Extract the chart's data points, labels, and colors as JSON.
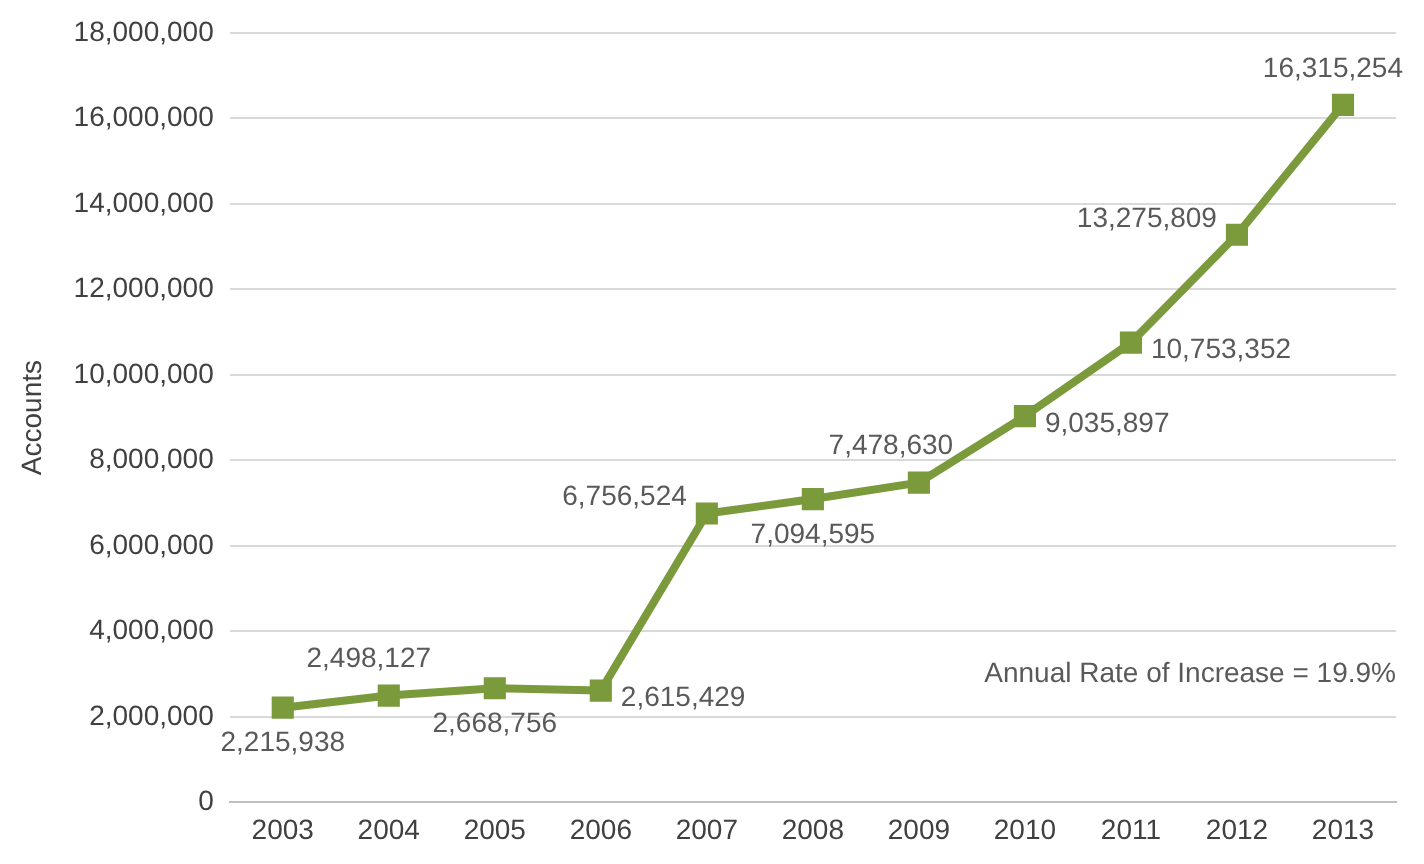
{
  "chart_data": {
    "type": "line",
    "ylabel": "Accounts",
    "categories": [
      "2003",
      "2004",
      "2005",
      "2006",
      "2007",
      "2008",
      "2009",
      "2010",
      "2011",
      "2012",
      "2013"
    ],
    "series": [
      {
        "color": "#7a9a3c",
        "values": [
          2215938,
          2498127,
          2668756,
          2615429,
          6756524,
          7094595,
          7478630,
          9035897,
          10753352,
          13275809,
          16315254
        ],
        "value_labels": [
          "2,215,938",
          "2,498,127",
          "2,668,756",
          "2,615,429",
          "6,756,524",
          "7,094,595",
          "7,478,630",
          "9,035,897",
          "10,753,352",
          "13,275,809",
          "16,315,254"
        ]
      }
    ],
    "ylim": [
      0,
      18000000
    ],
    "yticks": [
      {
        "value": 0,
        "label": "0"
      },
      {
        "value": 2000000,
        "label": "2,000,000"
      },
      {
        "value": 4000000,
        "label": "4,000,000"
      },
      {
        "value": 6000000,
        "label": "6,000,000"
      },
      {
        "value": 8000000,
        "label": "8,000,000"
      },
      {
        "value": 10000000,
        "label": "10,000,000"
      },
      {
        "value": 12000000,
        "label": "12,000,000"
      },
      {
        "value": 14000000,
        "label": "14,000,000"
      },
      {
        "value": 16000000,
        "label": "16,000,000"
      },
      {
        "value": 18000000,
        "label": "18,000,000"
      }
    ],
    "grid": "y",
    "legend": false,
    "marker": "square",
    "line_style": "solid",
    "annotations": [
      "Annual Rate of Increase = 19.9%"
    ]
  }
}
